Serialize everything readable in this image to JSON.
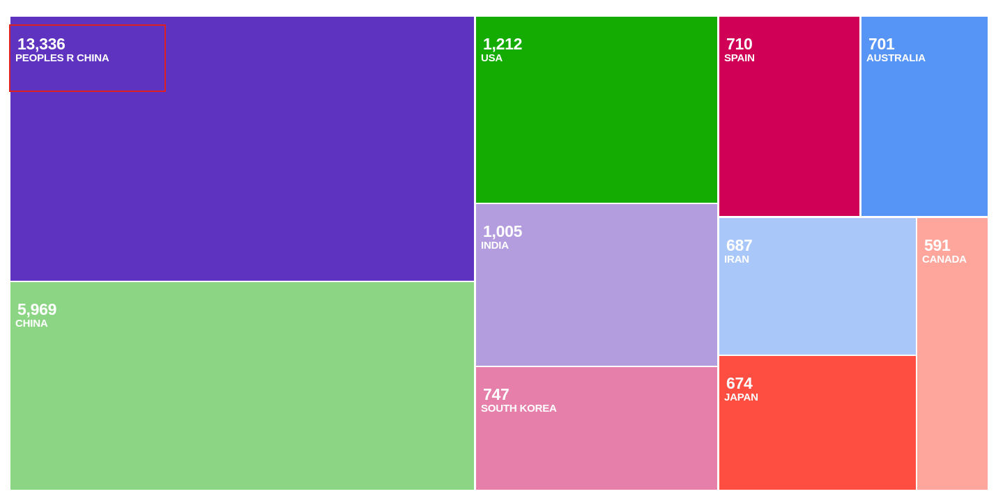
{
  "chart_data": {
    "type": "treemap",
    "categories": [
      "PEOPLES R CHINA",
      "CHINA",
      "USA",
      "INDIA",
      "SOUTH KOREA",
      "SPAIN",
      "AUSTRALIA",
      "IRAN",
      "JAPAN",
      "CANADA"
    ],
    "values": [
      13336,
      5969,
      1212,
      1005,
      747,
      710,
      701,
      687,
      674,
      591
    ],
    "value_labels": [
      "13,336",
      "5,969",
      "1,212",
      "1,005",
      "747",
      "710",
      "701",
      "687",
      "674",
      "591"
    ],
    "colors": [
      "#5e33c0",
      "#8cd584",
      "#14ac03",
      "#b39ddf",
      "#e77fab",
      "#d00056",
      "#5695f5",
      "#a9c8f9",
      "#fe4e41",
      "#fea69c"
    ],
    "highlighted": "PEOPLES R CHINA",
    "highlight_color": "#e02020"
  }
}
